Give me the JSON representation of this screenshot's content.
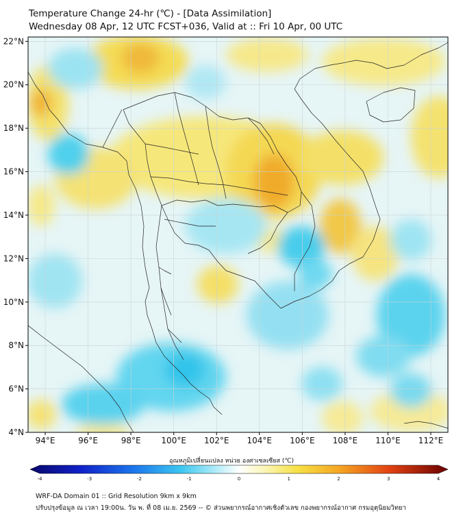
{
  "header": {
    "title_line1": "Temperature Change 24-hr (℃) - [Data Assimilation]",
    "title_line2": "Wednesday 08 Apr, 12 UTC FCST+036, Valid at :: Fri 10 Apr, 00 UTC"
  },
  "map": {
    "lat_labels": [
      "22°N",
      "20°N",
      "18°N",
      "16°N",
      "14°N",
      "12°N",
      "10°N",
      "8°N",
      "6°N",
      "4°N"
    ],
    "lat_values": [
      22,
      20,
      18,
      16,
      14,
      12,
      10,
      8,
      6,
      4
    ],
    "lon_labels": [
      "94°E",
      "96°E",
      "98°E",
      "100°E",
      "102°E",
      "104°E",
      "106°E",
      "108°E",
      "110°E",
      "112°E"
    ],
    "lon_values": [
      94,
      96,
      98,
      100,
      102,
      104,
      106,
      108,
      110,
      112
    ],
    "lon_range": [
      93.2,
      112.8
    ],
    "lat_range": [
      4.0,
      22.2
    ],
    "grid": true,
    "field_colors": {
      "warm": "#f5e46a",
      "warm_strong": "#f0a020",
      "cool": "#5fd6ee",
      "neutral": "#eaf6f6"
    }
  },
  "colorbar": {
    "title": "อุณหภูมิเปลี่ยนแปลง หน่วย องศาเซลเซียส (℃)",
    "tick_labels": [
      "-4",
      "-3",
      "-2",
      "-1",
      "0",
      "1",
      "2",
      "3",
      "4"
    ],
    "tick_values": [
      -4,
      -3,
      -2,
      -1,
      0,
      1,
      2,
      3,
      4
    ],
    "min": -4,
    "max": 4
  },
  "footer": {
    "line1": "WRF-DA Domain 01 :: Grid Resolution 9km x 9km",
    "line2": "ปรับปรุงข้อมูล ณ เวลา 19:00น. วัน พ. ที่ 08 เม.ย. 2569 -- © ส่วนพยากรณ์อากาศเชิงตัวเลข กองพยากรณ์อากาศ กรมอุตุนิยมวิทยา"
  }
}
